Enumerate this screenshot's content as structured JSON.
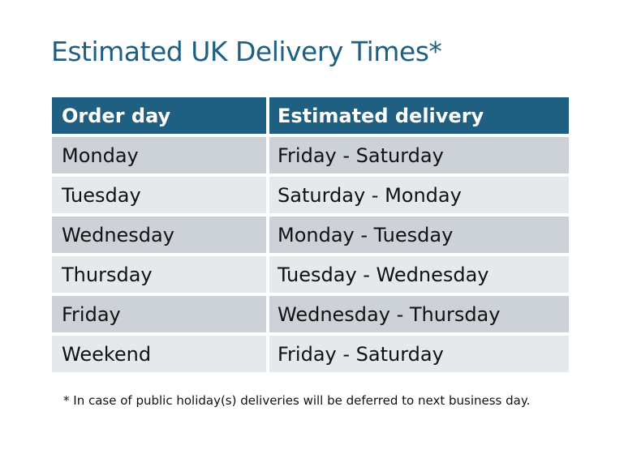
{
  "title": "Estimated UK Delivery Times*",
  "table": {
    "headers": [
      "Order day",
      "Estimated delivery"
    ],
    "rows": [
      [
        "Monday",
        "Friday - Saturday"
      ],
      [
        "Tuesday",
        "Saturday - Monday"
      ],
      [
        "Wednesday",
        "Monday - Tuesday"
      ],
      [
        "Thursday",
        "Tuesday - Wednesday"
      ],
      [
        "Friday",
        "Wednesday - Thursday"
      ],
      [
        "Weekend",
        "Friday - Saturday"
      ]
    ]
  },
  "footnote": "* In case of public holiday(s) deliveries will be deferred to next business day.",
  "colors": {
    "header": "#1f5f82",
    "row_dark": "#cdd1d8",
    "row_light": "#e6e9ec",
    "title": "#1f5f82"
  }
}
